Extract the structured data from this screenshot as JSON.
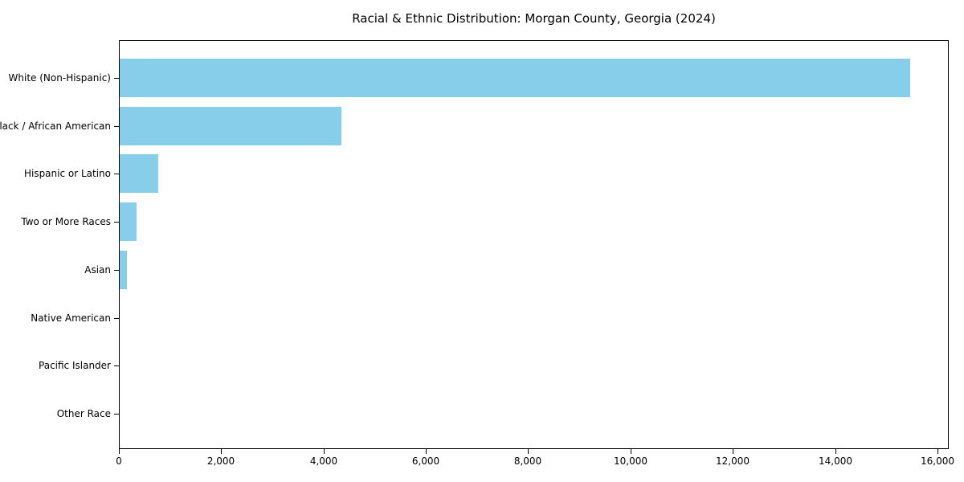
{
  "chart_data": {
    "type": "bar",
    "orientation": "horizontal",
    "title": "Racial & Ethnic Distribution: Morgan County, Georgia (2024)",
    "categories": [
      "White (Non-Hispanic)",
      "Black / African American",
      "Hispanic or Latino",
      "Two or More Races",
      "Asian",
      "Native American",
      "Pacific Islander",
      "Other Race"
    ],
    "values": [
      15450,
      4330,
      755,
      325,
      145,
      0,
      0,
      0
    ],
    "xlabel": "",
    "ylabel": "",
    "xlim": [
      0,
      16220
    ],
    "x_ticks": [
      0,
      2000,
      4000,
      6000,
      8000,
      10000,
      12000,
      14000,
      16000
    ],
    "x_tick_labels": [
      "0",
      "2,000",
      "4,000",
      "6,000",
      "8,000",
      "10,000",
      "12,000",
      "14,000",
      "16,000"
    ],
    "grid": false,
    "legend": "none",
    "bar_color": "#87CEEB",
    "axis_color": "#000000",
    "background_color": "#ffffff"
  }
}
